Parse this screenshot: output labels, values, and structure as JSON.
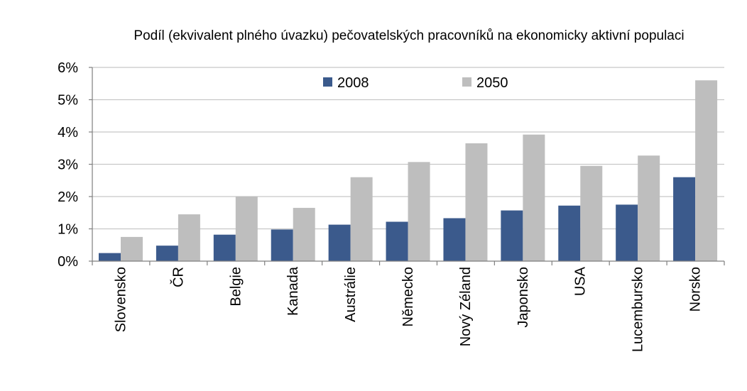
{
  "chart_data": {
    "type": "bar",
    "title": "Podíl (ekvivalent plného úvazku) pečovatelských pracovníků na ekonomicky aktivní populaci",
    "xlabel": "",
    "ylabel": "",
    "ylim": [
      0,
      6
    ],
    "yticks": [
      "0%",
      "1%",
      "2%",
      "3%",
      "4%",
      "5%",
      "6%"
    ],
    "grid": true,
    "legend_position": "top",
    "categories": [
      "Slovensko",
      "ČR",
      "Belgie",
      "Kanada",
      "Austrálie",
      "Německo",
      "Nový Zéland",
      "Japonsko",
      "USA",
      "Lucembursko",
      "Norsko"
    ],
    "series": [
      {
        "name": "2008",
        "color": "#3b5a8c",
        "values": [
          0.25,
          0.48,
          0.82,
          0.98,
          1.13,
          1.22,
          1.33,
          1.57,
          1.72,
          1.75,
          2.6
        ]
      },
      {
        "name": "2050",
        "color": "#bebebe",
        "values": [
          0.75,
          1.45,
          2.0,
          1.65,
          2.6,
          3.07,
          3.65,
          3.92,
          2.95,
          3.27,
          5.6
        ]
      }
    ]
  }
}
